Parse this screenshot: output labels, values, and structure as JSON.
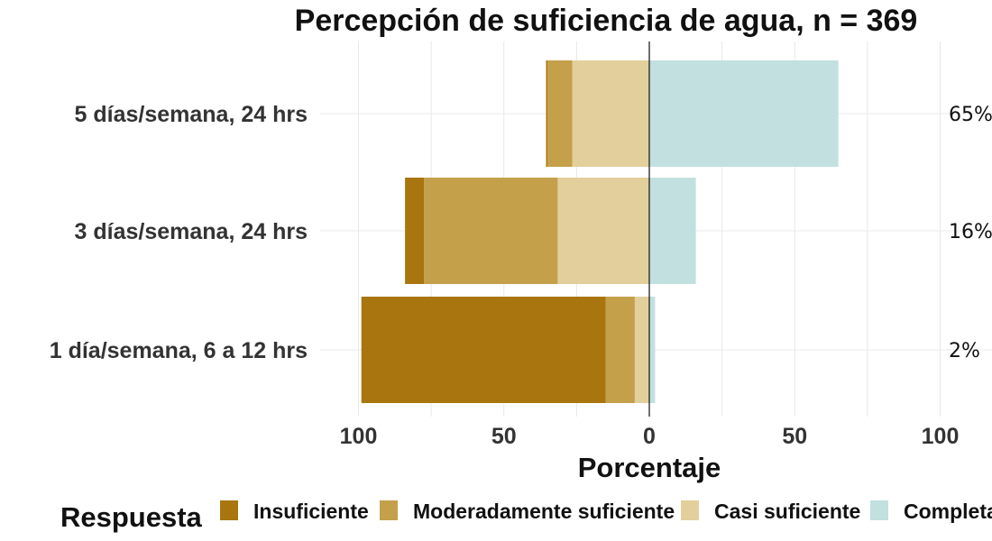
{
  "chart_data": {
    "type": "bar",
    "orientation": "horizontal-diverging",
    "title": "Percepción de suficiencia de agua, n = 369",
    "xlabel": "Porcentaje",
    "ylabel": "",
    "xlim": [
      -100,
      100
    ],
    "x_ticks": [
      -100,
      -50,
      0,
      50,
      100
    ],
    "x_tick_labels": [
      "100",
      "50",
      "0",
      "50",
      "100"
    ],
    "grid": true,
    "legend": {
      "title": "Respuesta",
      "position": "bottom"
    },
    "categories": [
      "5 días/semana, 24 hrs",
      "3 días/semana, 24 hrs",
      "1 día/semana, 6 a 12 hrs"
    ],
    "series": [
      {
        "name": "Insuficiente",
        "color": "#a8750f",
        "side": "negative",
        "values": [
          0.5,
          6.5,
          84
        ]
      },
      {
        "name": "Moderadamente suficiente",
        "color": "#c4a04a",
        "side": "negative",
        "values": [
          8.5,
          46,
          10
        ]
      },
      {
        "name": "Casi suficiente",
        "color": "#e2cf9c",
        "side": "negative",
        "values": [
          26.5,
          31.5,
          5
        ]
      },
      {
        "name": "Completamente suficiente",
        "color": "#c2e0e0",
        "side": "positive",
        "values": [
          65,
          16,
          2
        ]
      }
    ],
    "right_labels": [
      "65%",
      "16%",
      "2%"
    ]
  }
}
